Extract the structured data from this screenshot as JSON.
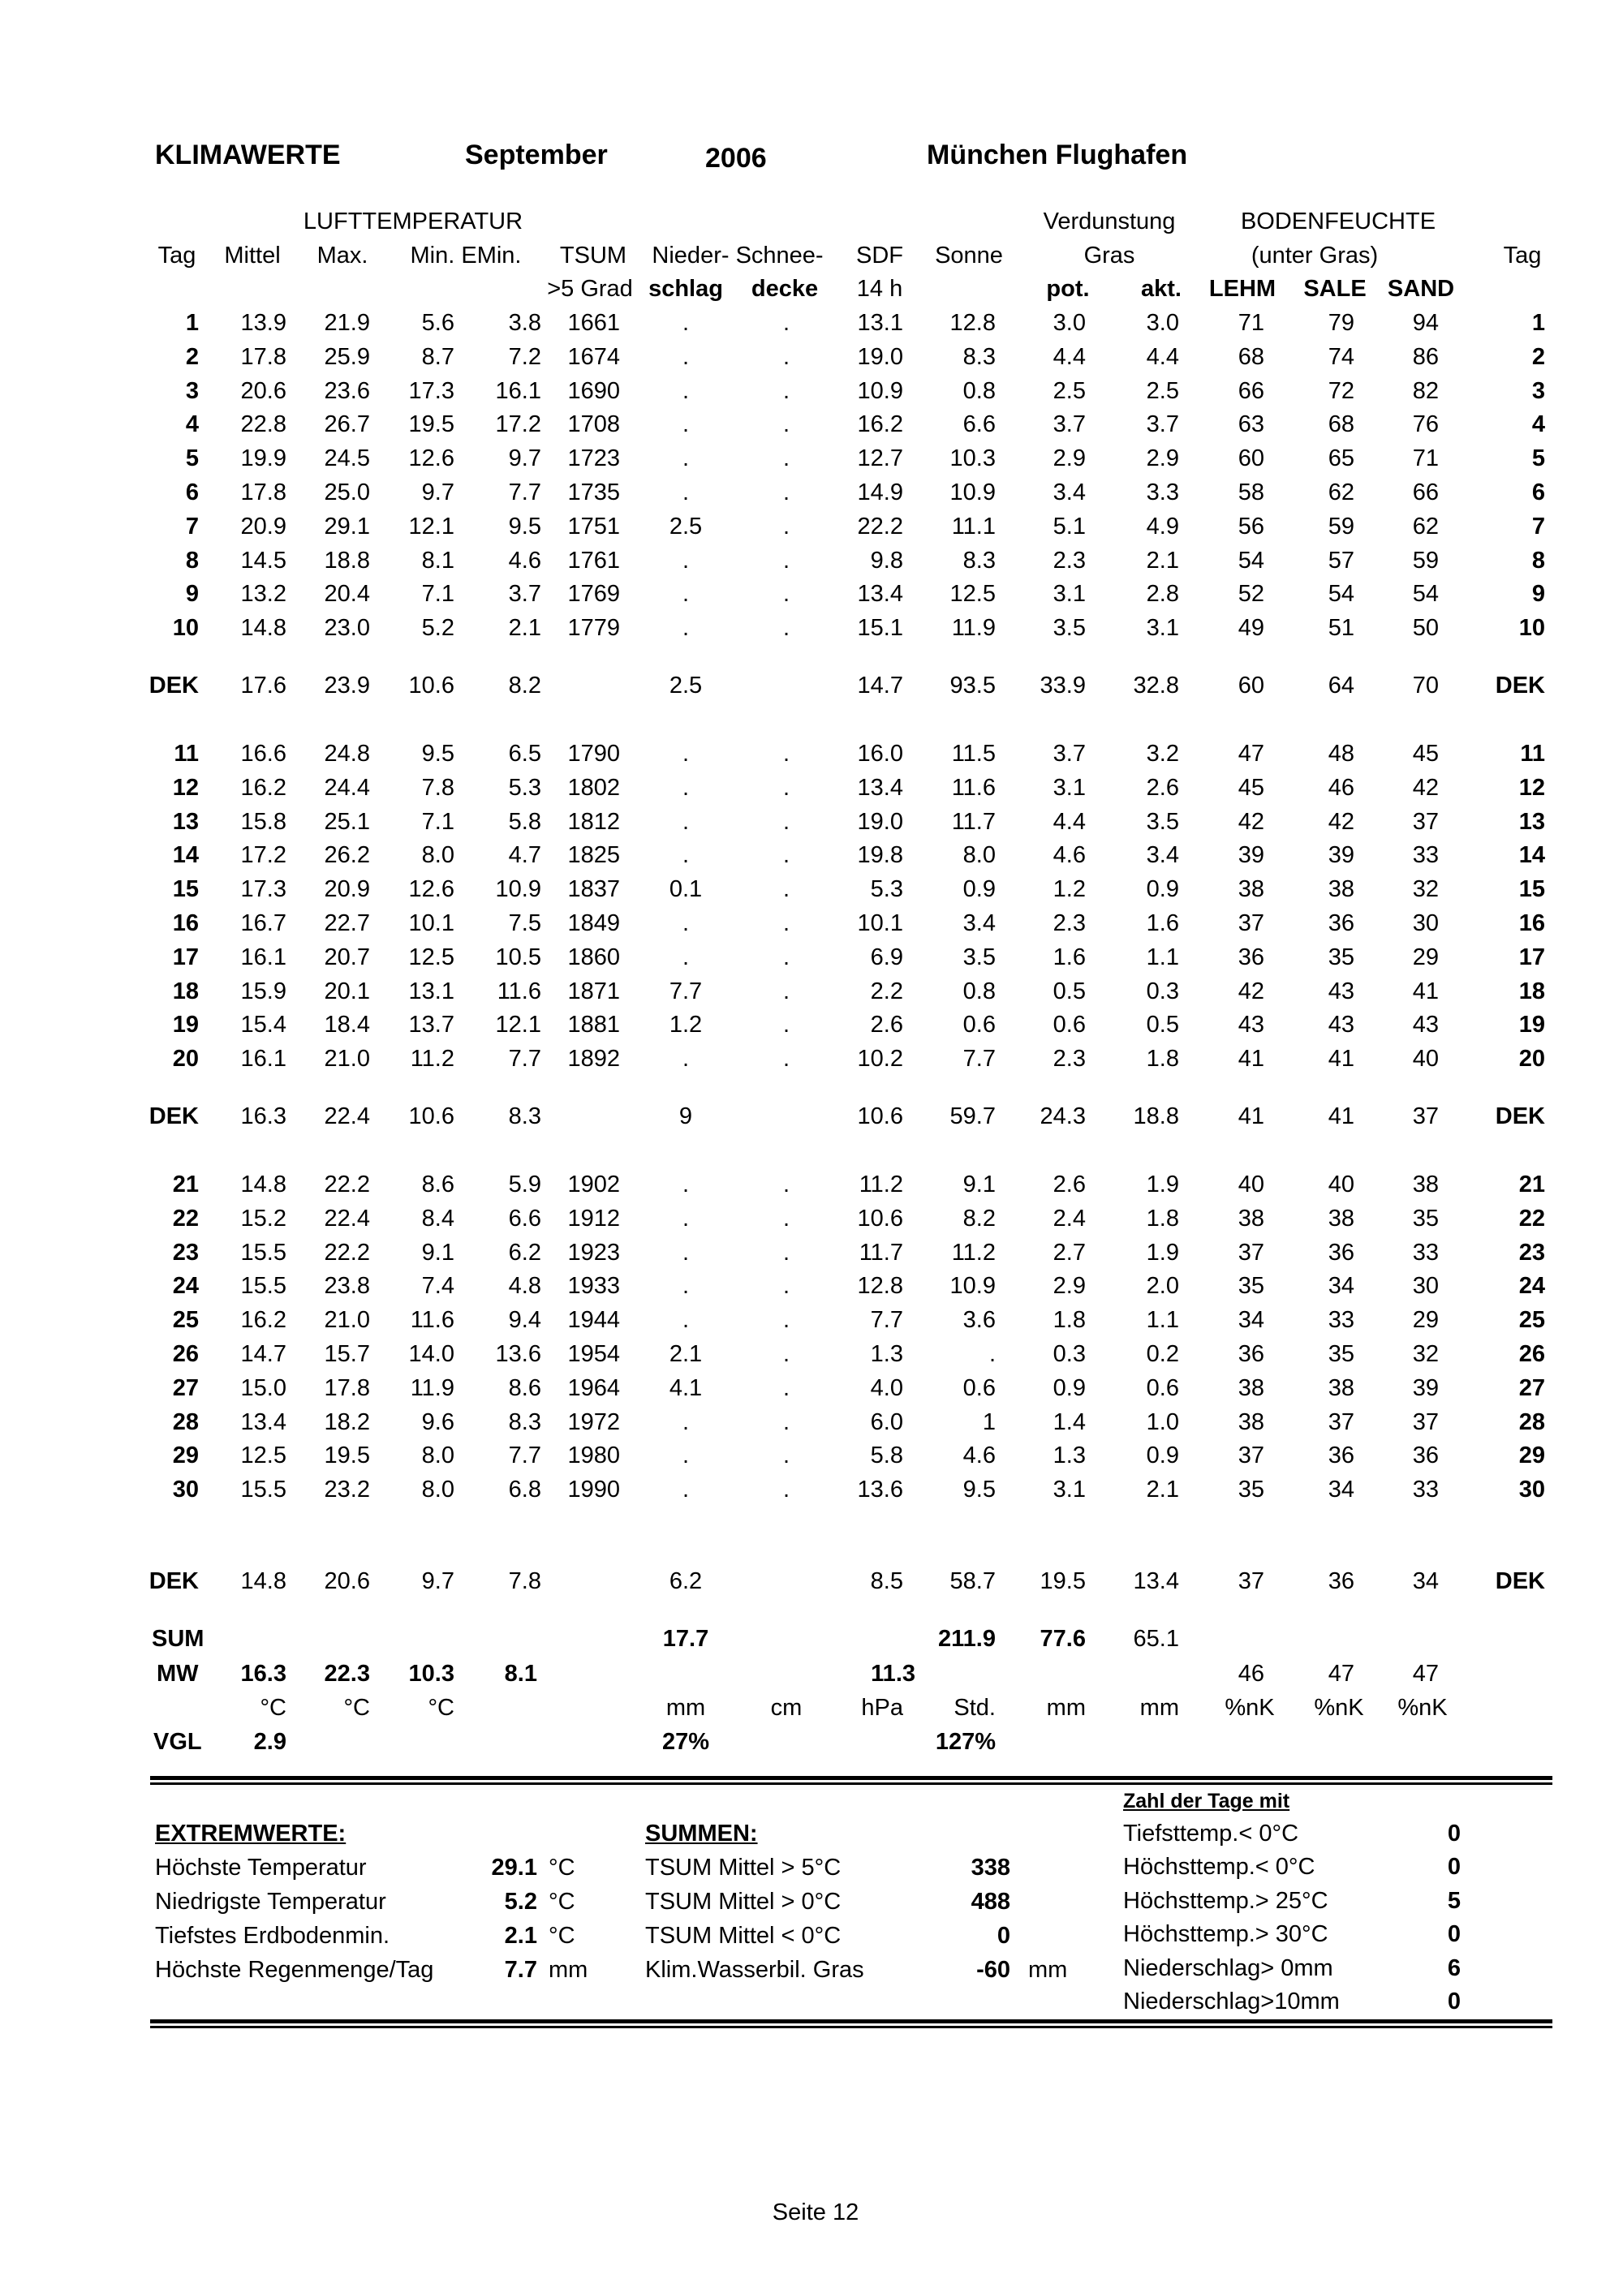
{
  "title": {
    "label": "KLIMAWERTE",
    "month": "September",
    "year": "2006",
    "station": "München Flughafen"
  },
  "headers": {
    "group_temp": "LUFTTEMPERATUR",
    "group_evap": "Verdunstung",
    "group_soil": "BODENFEUCHTE",
    "row2": [
      "Tag",
      "Mittel",
      "Max.",
      "Min. EMin.",
      "TSUM",
      "Nieder- Schnee-",
      "SDF",
      "Sonne",
      "Gras",
      "(unter Gras)",
      "Tag"
    ],
    "row3": [
      ">5 Grad",
      "schlag",
      "decke",
      "14 h",
      "pot.",
      "akt.",
      "LEHM",
      "SALE",
      "SAND"
    ]
  },
  "days": [
    [
      "1",
      "13.9",
      "21.9",
      "5.6",
      "3.8",
      "1661",
      ".",
      ".",
      "13.1",
      "12.8",
      "3.0",
      "3.0",
      "71",
      "79",
      "94"
    ],
    [
      "2",
      "17.8",
      "25.9",
      "8.7",
      "7.2",
      "1674",
      ".",
      ".",
      "19.0",
      "8.3",
      "4.4",
      "4.4",
      "68",
      "74",
      "86"
    ],
    [
      "3",
      "20.6",
      "23.6",
      "17.3",
      "16.1",
      "1690",
      ".",
      ".",
      "10.9",
      "0.8",
      "2.5",
      "2.5",
      "66",
      "72",
      "82"
    ],
    [
      "4",
      "22.8",
      "26.7",
      "19.5",
      "17.2",
      "1708",
      ".",
      ".",
      "16.2",
      "6.6",
      "3.7",
      "3.7",
      "63",
      "68",
      "76"
    ],
    [
      "5",
      "19.9",
      "24.5",
      "12.6",
      "9.7",
      "1723",
      ".",
      ".",
      "12.7",
      "10.3",
      "2.9",
      "2.9",
      "60",
      "65",
      "71"
    ],
    [
      "6",
      "17.8",
      "25.0",
      "9.7",
      "7.7",
      "1735",
      ".",
      ".",
      "14.9",
      "10.9",
      "3.4",
      "3.3",
      "58",
      "62",
      "66"
    ],
    [
      "7",
      "20.9",
      "29.1",
      "12.1",
      "9.5",
      "1751",
      "2.5",
      ".",
      "22.2",
      "11.1",
      "5.1",
      "4.9",
      "56",
      "59",
      "62"
    ],
    [
      "8",
      "14.5",
      "18.8",
      "8.1",
      "4.6",
      "1761",
      ".",
      ".",
      "9.8",
      "8.3",
      "2.3",
      "2.1",
      "54",
      "57",
      "59"
    ],
    [
      "9",
      "13.2",
      "20.4",
      "7.1",
      "3.7",
      "1769",
      ".",
      ".",
      "13.4",
      "12.5",
      "3.1",
      "2.8",
      "52",
      "54",
      "54"
    ],
    [
      "10",
      "14.8",
      "23.0",
      "5.2",
      "2.1",
      "1779",
      ".",
      ".",
      "15.1",
      "11.9",
      "3.5",
      "3.1",
      "49",
      "51",
      "50"
    ],
    [
      "11",
      "16.6",
      "24.8",
      "9.5",
      "6.5",
      "1790",
      ".",
      ".",
      "16.0",
      "11.5",
      "3.7",
      "3.2",
      "47",
      "48",
      "45"
    ],
    [
      "12",
      "16.2",
      "24.4",
      "7.8",
      "5.3",
      "1802",
      ".",
      ".",
      "13.4",
      "11.6",
      "3.1",
      "2.6",
      "45",
      "46",
      "42"
    ],
    [
      "13",
      "15.8",
      "25.1",
      "7.1",
      "5.8",
      "1812",
      ".",
      ".",
      "19.0",
      "11.7",
      "4.4",
      "3.5",
      "42",
      "42",
      "37"
    ],
    [
      "14",
      "17.2",
      "26.2",
      "8.0",
      "4.7",
      "1825",
      ".",
      ".",
      "19.8",
      "8.0",
      "4.6",
      "3.4",
      "39",
      "39",
      "33"
    ],
    [
      "15",
      "17.3",
      "20.9",
      "12.6",
      "10.9",
      "1837",
      "0.1",
      ".",
      "5.3",
      "0.9",
      "1.2",
      "0.9",
      "38",
      "38",
      "32"
    ],
    [
      "16",
      "16.7",
      "22.7",
      "10.1",
      "7.5",
      "1849",
      ".",
      ".",
      "10.1",
      "3.4",
      "2.3",
      "1.6",
      "37",
      "36",
      "30"
    ],
    [
      "17",
      "16.1",
      "20.7",
      "12.5",
      "10.5",
      "1860",
      ".",
      ".",
      "6.9",
      "3.5",
      "1.6",
      "1.1",
      "36",
      "35",
      "29"
    ],
    [
      "18",
      "15.9",
      "20.1",
      "13.1",
      "11.6",
      "1871",
      "7.7",
      ".",
      "2.2",
      "0.8",
      "0.5",
      "0.3",
      "42",
      "43",
      "41"
    ],
    [
      "19",
      "15.4",
      "18.4",
      "13.7",
      "12.1",
      "1881",
      "1.2",
      ".",
      "2.6",
      "0.6",
      "0.6",
      "0.5",
      "43",
      "43",
      "43"
    ],
    [
      "20",
      "16.1",
      "21.0",
      "11.2",
      "7.7",
      "1892",
      ".",
      ".",
      "10.2",
      "7.7",
      "2.3",
      "1.8",
      "41",
      "41",
      "40"
    ],
    [
      "21",
      "14.8",
      "22.2",
      "8.6",
      "5.9",
      "1902",
      ".",
      ".",
      "11.2",
      "9.1",
      "2.6",
      "1.9",
      "40",
      "40",
      "38"
    ],
    [
      "22",
      "15.2",
      "22.4",
      "8.4",
      "6.6",
      "1912",
      ".",
      ".",
      "10.6",
      "8.2",
      "2.4",
      "1.8",
      "38",
      "38",
      "35"
    ],
    [
      "23",
      "15.5",
      "22.2",
      "9.1",
      "6.2",
      "1923",
      ".",
      ".",
      "11.7",
      "11.2",
      "2.7",
      "1.9",
      "37",
      "36",
      "33"
    ],
    [
      "24",
      "15.5",
      "23.8",
      "7.4",
      "4.8",
      "1933",
      ".",
      ".",
      "12.8",
      "10.9",
      "2.9",
      "2.0",
      "35",
      "34",
      "30"
    ],
    [
      "25",
      "16.2",
      "21.0",
      "11.6",
      "9.4",
      "1944",
      ".",
      ".",
      "7.7",
      "3.6",
      "1.8",
      "1.1",
      "34",
      "33",
      "29"
    ],
    [
      "26",
      "14.7",
      "15.7",
      "14.0",
      "13.6",
      "1954",
      "2.1",
      ".",
      "1.3",
      ".",
      "0.3",
      "0.2",
      "36",
      "35",
      "32"
    ],
    [
      "27",
      "15.0",
      "17.8",
      "11.9",
      "8.6",
      "1964",
      "4.1",
      ".",
      "4.0",
      "0.6",
      "0.9",
      "0.6",
      "38",
      "38",
      "39"
    ],
    [
      "28",
      "13.4",
      "18.2",
      "9.6",
      "8.3",
      "1972",
      ".",
      ".",
      "6.0",
      "1",
      "1.4",
      "1.0",
      "38",
      "37",
      "37"
    ],
    [
      "29",
      "12.5",
      "19.5",
      "8.0",
      "7.7",
      "1980",
      ".",
      ".",
      "5.8",
      "4.6",
      "1.3",
      "0.9",
      "37",
      "36",
      "36"
    ],
    [
      "30",
      "15.5",
      "23.2",
      "8.0",
      "6.8",
      "1990",
      ".",
      ".",
      "13.6",
      "9.5",
      "3.1",
      "2.1",
      "35",
      "34",
      "33"
    ]
  ],
  "dek": [
    [
      "DEK",
      "17.6",
      "23.9",
      "10.6",
      "8.2",
      "",
      "2.5",
      "",
      "14.7",
      "93.5",
      "33.9",
      "32.8",
      "60",
      "64",
      "70"
    ],
    [
      "DEK",
      "16.3",
      "22.4",
      "10.6",
      "8.3",
      "",
      "9",
      "",
      "10.6",
      "59.7",
      "24.3",
      "18.8",
      "41",
      "41",
      "37"
    ],
    [
      "DEK",
      "14.8",
      "20.6",
      "9.7",
      "7.8",
      "",
      "6.2",
      "",
      "8.5",
      "58.7",
      "19.5",
      "13.4",
      "37",
      "36",
      "34"
    ]
  ],
  "summary": {
    "sum": {
      "label": "SUM",
      "niederschlag": "17.7",
      "sonne": "211.9",
      "pot": "77.6",
      "akt": "65.1"
    },
    "mw": {
      "label": "MW",
      "mittel": "16.3",
      "max": "22.3",
      "min": "10.3",
      "emin": "8.1",
      "sdf": "11.3",
      "lehm": "46",
      "sale": "47",
      "sand": "47"
    },
    "units": {
      "mittel": "°C",
      "max": "°C",
      "min": "°C",
      "niederschlag": "mm",
      "schnee": "cm",
      "sdf": "hPa",
      "sonne": "Std.",
      "pot": "mm",
      "akt": "mm",
      "lehm": "%nK",
      "sale": "%nK",
      "sand": "%nK"
    },
    "vgl": {
      "label": "VGL",
      "mittel": "2.9",
      "niederschlag": "27%",
      "sonne": "127%"
    }
  },
  "extremwerte": {
    "heading": "EXTREMWERTE:",
    "rows": [
      {
        "label": "Höchste Temperatur",
        "value": "29.1",
        "unit": "°C"
      },
      {
        "label": "Niedrigste Temperatur",
        "value": "5.2",
        "unit": "°C"
      },
      {
        "label": "Tiefstes Erdbodenmin.",
        "value": "2.1",
        "unit": "°C"
      },
      {
        "label": "Höchste Regenmenge/Tag",
        "value": "7.7",
        "unit": "mm"
      }
    ]
  },
  "summen": {
    "heading": "SUMMEN:",
    "rows": [
      {
        "label": "TSUM Mittel > 5°C",
        "value": "338",
        "unit": ""
      },
      {
        "label": "TSUM Mittel > 0°C",
        "value": "488",
        "unit": ""
      },
      {
        "label": "TSUM Mittel < 0°C",
        "value": "0",
        "unit": ""
      },
      {
        "label": "Klim.Wasserbil. Gras",
        "value": "-60",
        "unit": "mm"
      }
    ]
  },
  "tage": {
    "heading": "Zahl der Tage mit",
    "rows": [
      {
        "label": "Tiefsttemp.< 0°C",
        "value": "0"
      },
      {
        "label": "Höchsttemp.< 0°C",
        "value": "0"
      },
      {
        "label": "Höchsttemp.> 25°C",
        "value": "5"
      },
      {
        "label": "Höchsttemp.> 30°C",
        "value": "0"
      },
      {
        "label": "Niederschlag> 0mm",
        "value": "6"
      },
      {
        "label": "Niederschlag>10mm",
        "value": "0"
      }
    ]
  },
  "footer": {
    "page": "Seite 12"
  }
}
